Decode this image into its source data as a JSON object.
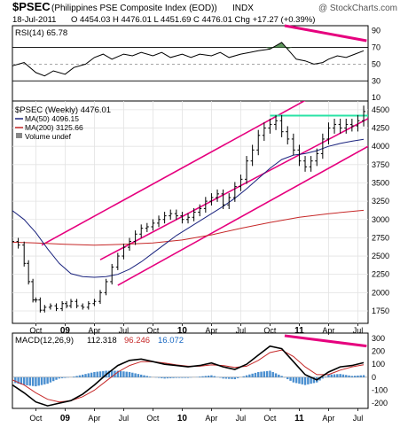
{
  "chart_data": {
    "type": "line",
    "header": {
      "symbol": "$PSEC",
      "name": "(Philippines PSE Composite Index (EOD))",
      "exchange": "INDX",
      "watermark": "@ StockCharts.com",
      "date": "18-Jul-2011",
      "quote": "O 4454.03  H 4476.01  L 4451.69  C 4476.01  Chg +17.27 (+0.39%)"
    },
    "x_ticks": [
      "Oct",
      "09",
      "Apr",
      "Jul",
      "Oct",
      "10",
      "Apr",
      "Jul",
      "Oct",
      "11",
      "Apr",
      "Jul"
    ],
    "x_positions": [
      0,
      1,
      2,
      3,
      4,
      5,
      6,
      7,
      8,
      9,
      10,
      11
    ],
    "x_bold": [
      "09",
      "10",
      "11"
    ],
    "x_range": [
      -0.8,
      11.35
    ],
    "rsi": {
      "label": "RSI(14) 65.78",
      "ticks": [
        90,
        70,
        50,
        30,
        10
      ],
      "guides": [
        70,
        30
      ],
      "ylim": [
        6,
        96
      ],
      "values": [
        [
          -0.8,
          48
        ],
        [
          -0.4,
          52
        ],
        [
          0,
          40
        ],
        [
          0.3,
          36
        ],
        [
          0.6,
          42
        ],
        [
          1,
          38
        ],
        [
          1.3,
          46
        ],
        [
          1.7,
          50
        ],
        [
          2,
          58
        ],
        [
          2.3,
          62
        ],
        [
          2.6,
          56
        ],
        [
          3,
          62
        ],
        [
          3.3,
          60
        ],
        [
          3.6,
          64
        ],
        [
          4,
          60
        ],
        [
          4.3,
          64
        ],
        [
          4.6,
          58
        ],
        [
          5,
          62
        ],
        [
          5.3,
          58
        ],
        [
          5.6,
          62
        ],
        [
          6,
          60
        ],
        [
          6.3,
          64
        ],
        [
          6.6,
          58
        ],
        [
          7,
          62
        ],
        [
          7.3,
          64
        ],
        [
          7.6,
          66
        ],
        [
          8,
          68
        ],
        [
          8.2,
          72
        ],
        [
          8.4,
          76
        ],
        [
          8.6,
          68
        ],
        [
          8.9,
          56
        ],
        [
          9.2,
          54
        ],
        [
          9.5,
          50
        ],
        [
          9.8,
          52
        ],
        [
          10,
          56
        ],
        [
          10.3,
          60
        ],
        [
          10.6,
          58
        ],
        [
          10.9,
          62
        ],
        [
          11.2,
          66
        ]
      ],
      "annotation": [
        [
          8.5,
          96
        ],
        [
          11.3,
          78
        ]
      ]
    },
    "price": {
      "label": "$PSEC (Weekly) 4476.01",
      "ma50_label": "MA(50) 4096.15",
      "ma200_label": "MA(200) 3125.66",
      "volume_label": "Volume undef",
      "ticks": [
        4500,
        4250,
        4000,
        3750,
        3500,
        3250,
        3000,
        2750,
        2500,
        2250,
        2000,
        1750
      ],
      "ylim": [
        1580,
        4620
      ],
      "close": [
        [
          -0.8,
          2700
        ],
        [
          -0.6,
          2650
        ],
        [
          -0.4,
          2400
        ],
        [
          -0.25,
          2150
        ],
        [
          -0.1,
          1900
        ],
        [
          0,
          1900
        ],
        [
          0.15,
          1760
        ],
        [
          0.3,
          1800
        ],
        [
          0.5,
          1820
        ],
        [
          0.7,
          1780
        ],
        [
          0.9,
          1850
        ],
        [
          1.05,
          1820
        ],
        [
          1.2,
          1880
        ],
        [
          1.4,
          1820
        ],
        [
          1.6,
          1800
        ],
        [
          1.8,
          1850
        ],
        [
          2,
          1880
        ],
        [
          2.2,
          2000
        ],
        [
          2.4,
          2150
        ],
        [
          2.6,
          2350
        ],
        [
          2.8,
          2500
        ],
        [
          3,
          2620
        ],
        [
          3.2,
          2700
        ],
        [
          3.4,
          2800
        ],
        [
          3.6,
          2880
        ],
        [
          3.8,
          2900
        ],
        [
          4,
          2950
        ],
        [
          4.2,
          3000
        ],
        [
          4.4,
          3050
        ],
        [
          4.6,
          3080
        ],
        [
          4.8,
          3050
        ],
        [
          5,
          3000
        ],
        [
          5.2,
          3030
        ],
        [
          5.4,
          3100
        ],
        [
          5.6,
          3150
        ],
        [
          5.8,
          3250
        ],
        [
          6,
          3300
        ],
        [
          6.2,
          3350
        ],
        [
          6.4,
          3200
        ],
        [
          6.6,
          3300
        ],
        [
          6.8,
          3450
        ],
        [
          7,
          3550
        ],
        [
          7.2,
          3800
        ],
        [
          7.4,
          3950
        ],
        [
          7.6,
          4150
        ],
        [
          7.8,
          4250
        ],
        [
          8,
          4300
        ],
        [
          8.2,
          4350
        ],
        [
          8.4,
          4200
        ],
        [
          8.6,
          4100
        ],
        [
          8.8,
          3950
        ],
        [
          9,
          3800
        ],
        [
          9.2,
          3720
        ],
        [
          9.4,
          3800
        ],
        [
          9.6,
          3900
        ],
        [
          9.8,
          4100
        ],
        [
          10,
          4250
        ],
        [
          10.2,
          4300
        ],
        [
          10.4,
          4250
        ],
        [
          10.6,
          4300
        ],
        [
          10.8,
          4280
        ],
        [
          11,
          4350
        ],
        [
          11.2,
          4476
        ]
      ],
      "ma50": [
        [
          -0.8,
          3120
        ],
        [
          -0.4,
          3000
        ],
        [
          0,
          2820
        ],
        [
          0.4,
          2600
        ],
        [
          0.8,
          2400
        ],
        [
          1.2,
          2260
        ],
        [
          1.6,
          2220
        ],
        [
          2,
          2210
        ],
        [
          2.4,
          2220
        ],
        [
          2.8,
          2250
        ],
        [
          3.2,
          2320
        ],
        [
          3.6,
          2420
        ],
        [
          4,
          2540
        ],
        [
          4.4,
          2660
        ],
        [
          4.8,
          2780
        ],
        [
          5.2,
          2880
        ],
        [
          5.6,
          2980
        ],
        [
          6,
          3080
        ],
        [
          6.4,
          3180
        ],
        [
          6.8,
          3290
        ],
        [
          7.2,
          3420
        ],
        [
          7.6,
          3560
        ],
        [
          8,
          3700
        ],
        [
          8.4,
          3820
        ],
        [
          8.8,
          3880
        ],
        [
          9.2,
          3900
        ],
        [
          9.6,
          3940
        ],
        [
          10,
          4000
        ],
        [
          10.4,
          4040
        ],
        [
          10.8,
          4070
        ],
        [
          11.2,
          4096
        ]
      ],
      "ma200": [
        [
          -0.8,
          2690
        ],
        [
          0,
          2680
        ],
        [
          1,
          2660
        ],
        [
          2,
          2650
        ],
        [
          3,
          2660
        ],
        [
          4,
          2680
        ],
        [
          5,
          2720
        ],
        [
          6,
          2790
        ],
        [
          7,
          2880
        ],
        [
          8,
          2960
        ],
        [
          9,
          3030
        ],
        [
          10,
          3080
        ],
        [
          11.2,
          3126
        ]
      ],
      "channel_upper": [
        [
          0.2,
          2650
        ],
        [
          11.35,
          5100
        ]
      ],
      "channel_mid": [
        [
          2.2,
          2450
        ],
        [
          11.35,
          4380
        ]
      ],
      "channel_lower": [
        [
          2.8,
          2100
        ],
        [
          11.35,
          4000
        ]
      ],
      "resistance": [
        [
          8,
          4420
        ],
        [
          11.35,
          4420
        ]
      ]
    },
    "macd": {
      "label_name": "MACD(12,26,9)",
      "label_macd": "112.318",
      "label_signal": "96.246",
      "label_hist": "16.072",
      "ticks": [
        300,
        200,
        100,
        0,
        -100,
        -200
      ],
      "ylim": [
        -240,
        340
      ],
      "macd": [
        [
          -0.8,
          -60
        ],
        [
          -0.4,
          -120
        ],
        [
          0,
          -190
        ],
        [
          0.4,
          -220
        ],
        [
          0.8,
          -200
        ],
        [
          1.2,
          -180
        ],
        [
          1.6,
          -130
        ],
        [
          2,
          -60
        ],
        [
          2.4,
          20
        ],
        [
          2.8,
          90
        ],
        [
          3.2,
          130
        ],
        [
          3.6,
          140
        ],
        [
          4,
          120
        ],
        [
          4.4,
          100
        ],
        [
          4.8,
          90
        ],
        [
          5.2,
          80
        ],
        [
          5.6,
          90
        ],
        [
          6,
          110
        ],
        [
          6.4,
          80
        ],
        [
          6.8,
          60
        ],
        [
          7.2,
          100
        ],
        [
          7.6,
          170
        ],
        [
          8,
          240
        ],
        [
          8.4,
          220
        ],
        [
          8.8,
          120
        ],
        [
          9.2,
          20
        ],
        [
          9.6,
          -20
        ],
        [
          10,
          40
        ],
        [
          10.4,
          80
        ],
        [
          10.8,
          90
        ],
        [
          11.2,
          112
        ]
      ],
      "signal": [
        [
          -0.8,
          -20
        ],
        [
          -0.4,
          -60
        ],
        [
          0,
          -120
        ],
        [
          0.4,
          -170
        ],
        [
          0.8,
          -190
        ],
        [
          1.2,
          -180
        ],
        [
          1.6,
          -150
        ],
        [
          2,
          -100
        ],
        [
          2.4,
          -30
        ],
        [
          2.8,
          40
        ],
        [
          3.2,
          90
        ],
        [
          3.6,
          120
        ],
        [
          4,
          120
        ],
        [
          4.4,
          110
        ],
        [
          4.8,
          95
        ],
        [
          5.2,
          85
        ],
        [
          5.6,
          85
        ],
        [
          6,
          95
        ],
        [
          6.4,
          90
        ],
        [
          6.8,
          75
        ],
        [
          7.2,
          85
        ],
        [
          7.6,
          130
        ],
        [
          8,
          190
        ],
        [
          8.4,
          210
        ],
        [
          8.8,
          160
        ],
        [
          9.2,
          80
        ],
        [
          9.6,
          20
        ],
        [
          10,
          20
        ],
        [
          10.4,
          55
        ],
        [
          10.8,
          80
        ],
        [
          11.2,
          96
        ]
      ],
      "annotation": [
        [
          8.5,
          320
        ],
        [
          11.3,
          240
        ]
      ]
    }
  }
}
